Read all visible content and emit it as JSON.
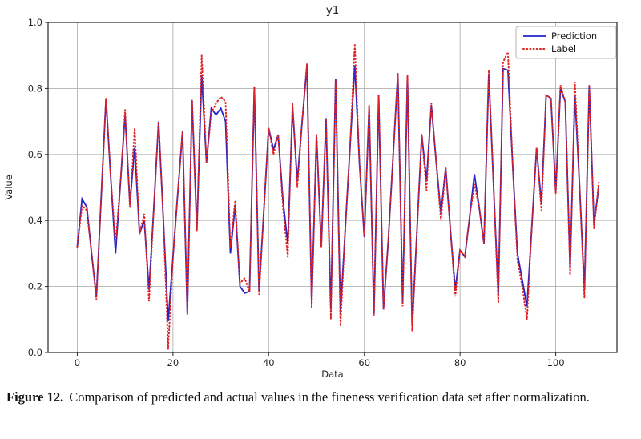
{
  "caption": {
    "label": "Figure 12.",
    "text": "Comparison of predicted and actual values in the fineness verification data set after normalization."
  },
  "chart_data": {
    "type": "line",
    "title": "y1",
    "xlabel": "Data",
    "ylabel": "Value",
    "xlim": [
      -6.1,
      112.8
    ],
    "ylim": [
      0.0,
      1.0
    ],
    "x_ticks": [
      0,
      20,
      40,
      60,
      80,
      100
    ],
    "y_ticks": [
      0.0,
      0.2,
      0.4,
      0.6,
      0.8,
      1.0
    ],
    "grid": true,
    "legend_position": "upper right",
    "x_start": 0,
    "x_step": 1,
    "series": [
      {
        "name": "Prediction",
        "color": "#2222cc",
        "style": "solid",
        "values": [
          0.32,
          0.465,
          0.44,
          0.3,
          0.17,
          0.47,
          0.77,
          0.53,
          0.3,
          0.51,
          0.72,
          0.45,
          0.62,
          0.36,
          0.4,
          0.19,
          0.44,
          0.7,
          0.4,
          0.095,
          0.29,
          0.48,
          0.67,
          0.115,
          0.765,
          0.37,
          0.84,
          0.575,
          0.74,
          0.72,
          0.74,
          0.7,
          0.3,
          0.445,
          0.2,
          0.18,
          0.185,
          0.805,
          0.185,
          0.43,
          0.68,
          0.615,
          0.66,
          0.46,
          0.33,
          0.745,
          0.52,
          0.7,
          0.87,
          0.145,
          0.66,
          0.32,
          0.71,
          0.13,
          0.83,
          0.12,
          0.37,
          0.62,
          0.87,
          0.57,
          0.35,
          0.745,
          0.115,
          0.78,
          0.13,
          0.34,
          0.59,
          0.845,
          0.15,
          0.835,
          0.08,
          0.37,
          0.66,
          0.52,
          0.75,
          0.58,
          0.42,
          0.56,
          0.37,
          0.19,
          0.31,
          0.29,
          0.41,
          0.54,
          0.44,
          0.33,
          0.845,
          0.51,
          0.175,
          0.86,
          0.855,
          0.57,
          0.3,
          0.22,
          0.14,
          0.38,
          0.62,
          0.45,
          0.78,
          0.77,
          0.49,
          0.8,
          0.76,
          0.255,
          0.78,
          0.5,
          0.19,
          0.81,
          0.39,
          0.5
        ]
      },
      {
        "name": "Label",
        "color": "#e02222",
        "style": "dotted",
        "values": [
          0.32,
          0.445,
          0.43,
          0.3,
          0.16,
          0.47,
          0.77,
          0.53,
          0.33,
          0.51,
          0.735,
          0.44,
          0.68,
          0.36,
          0.42,
          0.155,
          0.44,
          0.7,
          0.4,
          0.01,
          0.29,
          0.48,
          0.67,
          0.13,
          0.765,
          0.37,
          0.9,
          0.575,
          0.725,
          0.755,
          0.775,
          0.76,
          0.32,
          0.46,
          0.21,
          0.225,
          0.185,
          0.805,
          0.175,
          0.43,
          0.68,
          0.6,
          0.66,
          0.44,
          0.29,
          0.755,
          0.5,
          0.7,
          0.875,
          0.135,
          0.66,
          0.32,
          0.71,
          0.1,
          0.83,
          0.08,
          0.37,
          0.62,
          0.935,
          0.57,
          0.35,
          0.75,
          0.11,
          0.78,
          0.13,
          0.34,
          0.59,
          0.845,
          0.14,
          0.84,
          0.065,
          0.37,
          0.66,
          0.49,
          0.755,
          0.58,
          0.4,
          0.56,
          0.37,
          0.17,
          0.31,
          0.29,
          0.41,
          0.51,
          0.44,
          0.33,
          0.855,
          0.51,
          0.15,
          0.88,
          0.91,
          0.57,
          0.28,
          0.2,
          0.1,
          0.38,
          0.62,
          0.43,
          0.78,
          0.77,
          0.48,
          0.81,
          0.76,
          0.235,
          0.82,
          0.5,
          0.165,
          0.81,
          0.375,
          0.515
        ]
      }
    ]
  }
}
